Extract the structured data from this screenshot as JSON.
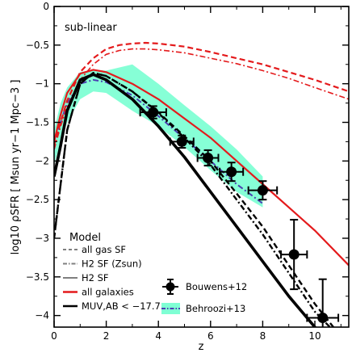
{
  "chart_data": {
    "type": "line",
    "panel_label": "sub-linear",
    "xlabel": "z",
    "ylabel": "log10 ρSFR [ Msun yr−1 Mpc−3 ]",
    "xlim": [
      0,
      11.3
    ],
    "ylim": [
      -4.15,
      0
    ],
    "x_ticks": [
      0,
      2,
      4,
      6,
      8,
      10
    ],
    "y_ticks": [
      0,
      -0.5,
      -1,
      -1.5,
      -2,
      -2.5,
      -3,
      -3.5,
      -4
    ],
    "y_tick_labels": [
      "0",
      "−0.5",
      "−1",
      "−1.5",
      "−2",
      "−2.5",
      "−3",
      "−3.5",
      "−4"
    ],
    "colors": {
      "red": "#e41a1c",
      "black": "#000000",
      "gray": "#7f7f7f",
      "band": "#7fffd4",
      "band_line": "#4b3fb2"
    },
    "series": [
      {
        "name": "all galaxies, H2 SF (Zsun)",
        "color": "#e41a1c",
        "style": "dashdot",
        "width": 1.6,
        "x": [
          0,
          0.25,
          0.5,
          1.0,
          1.5,
          2,
          2.5,
          3,
          3.5,
          4,
          5,
          6,
          7,
          8,
          9,
          10,
          11.3
        ],
        "y": [
          -1.85,
          -1.55,
          -1.3,
          -0.95,
          -0.75,
          -0.62,
          -0.57,
          -0.55,
          -0.55,
          -0.56,
          -0.6,
          -0.67,
          -0.74,
          -0.83,
          -0.93,
          -1.05,
          -1.2
        ]
      },
      {
        "name": "all galaxies, all gas SF",
        "color": "#e41a1c",
        "style": "dashed",
        "width": 2.2,
        "x": [
          0,
          0.25,
          0.5,
          1.0,
          1.5,
          2,
          2.5,
          3,
          3.5,
          4,
          5,
          6,
          7,
          8,
          9,
          10,
          11.3
        ],
        "y": [
          -1.8,
          -1.5,
          -1.22,
          -0.85,
          -0.67,
          -0.55,
          -0.5,
          -0.48,
          -0.47,
          -0.48,
          -0.52,
          -0.59,
          -0.67,
          -0.75,
          -0.85,
          -0.95,
          -1.1
        ]
      },
      {
        "name": "all galaxies, H2 SF",
        "color": "#e41a1c",
        "style": "solid",
        "width": 2.2,
        "x": [
          0,
          0.25,
          0.5,
          1.0,
          1.5,
          2,
          3,
          4,
          5,
          6,
          7,
          8,
          9,
          10,
          11.3
        ],
        "y": [
          -1.75,
          -1.4,
          -1.12,
          -0.87,
          -0.82,
          -0.85,
          -1.0,
          -1.2,
          -1.45,
          -1.7,
          -2.0,
          -2.3,
          -2.6,
          -2.9,
          -3.35
        ]
      },
      {
        "name": "MUV,AB < −17.7, H2 SF",
        "color": "#000000",
        "style": "solid",
        "width": 3.6,
        "x": [
          0,
          0.25,
          0.5,
          1.0,
          1.5,
          2,
          3,
          4,
          5,
          6,
          7,
          8,
          9,
          10,
          10.7
        ],
        "y": [
          -2.2,
          -1.8,
          -1.35,
          -0.95,
          -0.88,
          -0.95,
          -1.2,
          -1.55,
          -1.95,
          -2.4,
          -2.85,
          -3.3,
          -3.75,
          -4.15,
          -4.4
        ]
      },
      {
        "name": "MUV,AB < −17.7, H2 SF (Zsun)",
        "color": "#000000",
        "style": "dashdot",
        "width": 2.4,
        "x": [
          0,
          0.25,
          0.5,
          1.0,
          1.5,
          2,
          3,
          4,
          5,
          6,
          7,
          8,
          9,
          10,
          11.3
        ],
        "y": [
          -3.0,
          -2.3,
          -1.6,
          -1.0,
          -0.86,
          -0.9,
          -1.1,
          -1.38,
          -1.7,
          -2.05,
          -2.5,
          -2.95,
          -3.45,
          -3.95,
          -4.4
        ]
      },
      {
        "name": "MUV,AB < −17.7, all gas SF",
        "color": "#000000",
        "style": "dashed",
        "width": 2.4,
        "x": [
          0,
          0.25,
          0.5,
          1.0,
          1.5,
          2,
          3,
          4,
          5,
          6,
          7,
          8,
          9,
          10,
          11.3
        ],
        "y": [
          -3.0,
          -2.3,
          -1.6,
          -1.0,
          -0.86,
          -0.9,
          -1.1,
          -1.37,
          -1.68,
          -2.0,
          -2.42,
          -2.85,
          -3.35,
          -3.85,
          -4.4
        ]
      }
    ],
    "behroozi": {
      "name": "Behroozi+13",
      "x": [
        0,
        0.25,
        0.5,
        1.0,
        1.5,
        2,
        3,
        4,
        5,
        6,
        7,
        8
      ],
      "upper": [
        -1.6,
        -1.25,
        -1.05,
        -0.85,
        -0.82,
        -0.83,
        -1.0,
        -1.3,
        -1.6,
        -1.9,
        -2.2,
        -2.45
      ],
      "lower": [
        -2.05,
        -1.75,
        -1.5,
        -1.2,
        -1.1,
        -1.12,
        -1.35,
        -1.55,
        -1.82,
        -2.12,
        -2.4,
        -2.6
      ],
      "shoulder_x": [
        3,
        4,
        5,
        6,
        7,
        8
      ],
      "shoulder_upper": [
        -0.75,
        -1.0,
        -1.28,
        -1.55,
        -1.85,
        -2.2
      ],
      "central_x": [
        0,
        0.25,
        0.5,
        1.0,
        1.5,
        2,
        3,
        4,
        5,
        6,
        7,
        8
      ],
      "central_y": [
        -1.85,
        -1.5,
        -1.25,
        -1.0,
        -0.95,
        -0.98,
        -1.15,
        -1.42,
        -1.71,
        -2.0,
        -2.3,
        -2.55
      ]
    },
    "bouwens": {
      "name": "Bouwens+12",
      "points": [
        {
          "x": 3.8,
          "y": -1.37,
          "xerr": 0.5,
          "yerr_low": 0.08,
          "yerr_high": 0.08
        },
        {
          "x": 4.9,
          "y": -1.75,
          "xerr": 0.45,
          "yerr_low": 0.08,
          "yerr_high": 0.08
        },
        {
          "x": 5.9,
          "y": -1.96,
          "xerr": 0.4,
          "yerr_low": 0.1,
          "yerr_high": 0.1
        },
        {
          "x": 6.8,
          "y": -2.14,
          "xerr": 0.45,
          "yerr_low": 0.12,
          "yerr_high": 0.12
        },
        {
          "x": 8.0,
          "y": -2.38,
          "xerr": 0.55,
          "yerr_low": 0.12,
          "yerr_high": 0.12
        },
        {
          "x": 9.2,
          "y": -3.21,
          "xerr": 0.5,
          "yerr_low": 0.45,
          "yerr_high": 0.45
        },
        {
          "x": 10.3,
          "y": -4.03,
          "xerr": 0.6,
          "yerr_low": 0.5,
          "yerr_high": 0.5
        }
      ]
    },
    "legend_model": {
      "title": "Model",
      "entries": [
        {
          "label": "all gas SF",
          "color": "#7f7f7f",
          "style": "dashed"
        },
        {
          "label": "H2 SF (Zsun)",
          "color": "#7f7f7f",
          "style": "dashdot"
        },
        {
          "label": "H2 SF",
          "color": "#7f7f7f",
          "style": "solid"
        },
        {
          "label": "all galaxies",
          "color": "#e41a1c",
          "style": "solid"
        },
        {
          "label": "MUV,AB < −17.7",
          "color": "#000000",
          "style": "solid"
        }
      ]
    },
    "legend_data": {
      "entries": [
        {
          "label": "Bouwens+12"
        },
        {
          "label": "Behroozi+13"
        }
      ]
    }
  }
}
